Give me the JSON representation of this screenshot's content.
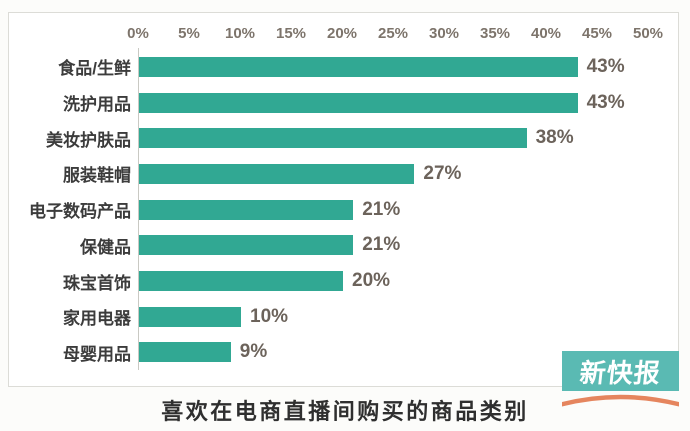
{
  "chart_data": {
    "type": "bar",
    "orientation": "horizontal",
    "title": "喜欢在电商直播间购买的商品类别",
    "categories": [
      "食品/生鲜",
      "洗护用品",
      "美妆护肤品",
      "服装鞋帽",
      "电子数码产品",
      "保健品",
      "珠宝首饰",
      "家用电器",
      "母婴用品"
    ],
    "values": [
      43,
      43,
      38,
      27,
      21,
      21,
      20,
      10,
      9
    ],
    "value_labels": [
      "43%",
      "43%",
      "38%",
      "27%",
      "21%",
      "21%",
      "20%",
      "10%",
      "9%"
    ],
    "xlabel": "",
    "ylabel": "",
    "xlim": [
      0,
      50
    ],
    "x_ticks": [
      "0%",
      "5%",
      "10%",
      "15%",
      "20%",
      "25%",
      "30%",
      "35%",
      "40%",
      "45%",
      "50%"
    ],
    "x_tick_values": [
      0,
      5,
      10,
      15,
      20,
      25,
      30,
      35,
      40,
      45,
      50
    ],
    "grid": false,
    "legend": false,
    "bar_color": "#31a893"
  },
  "logo": {
    "text": "新快报",
    "bg_color": "#5abab3",
    "swoosh_color": "#e5855e",
    "text_color": "#ffffff"
  }
}
